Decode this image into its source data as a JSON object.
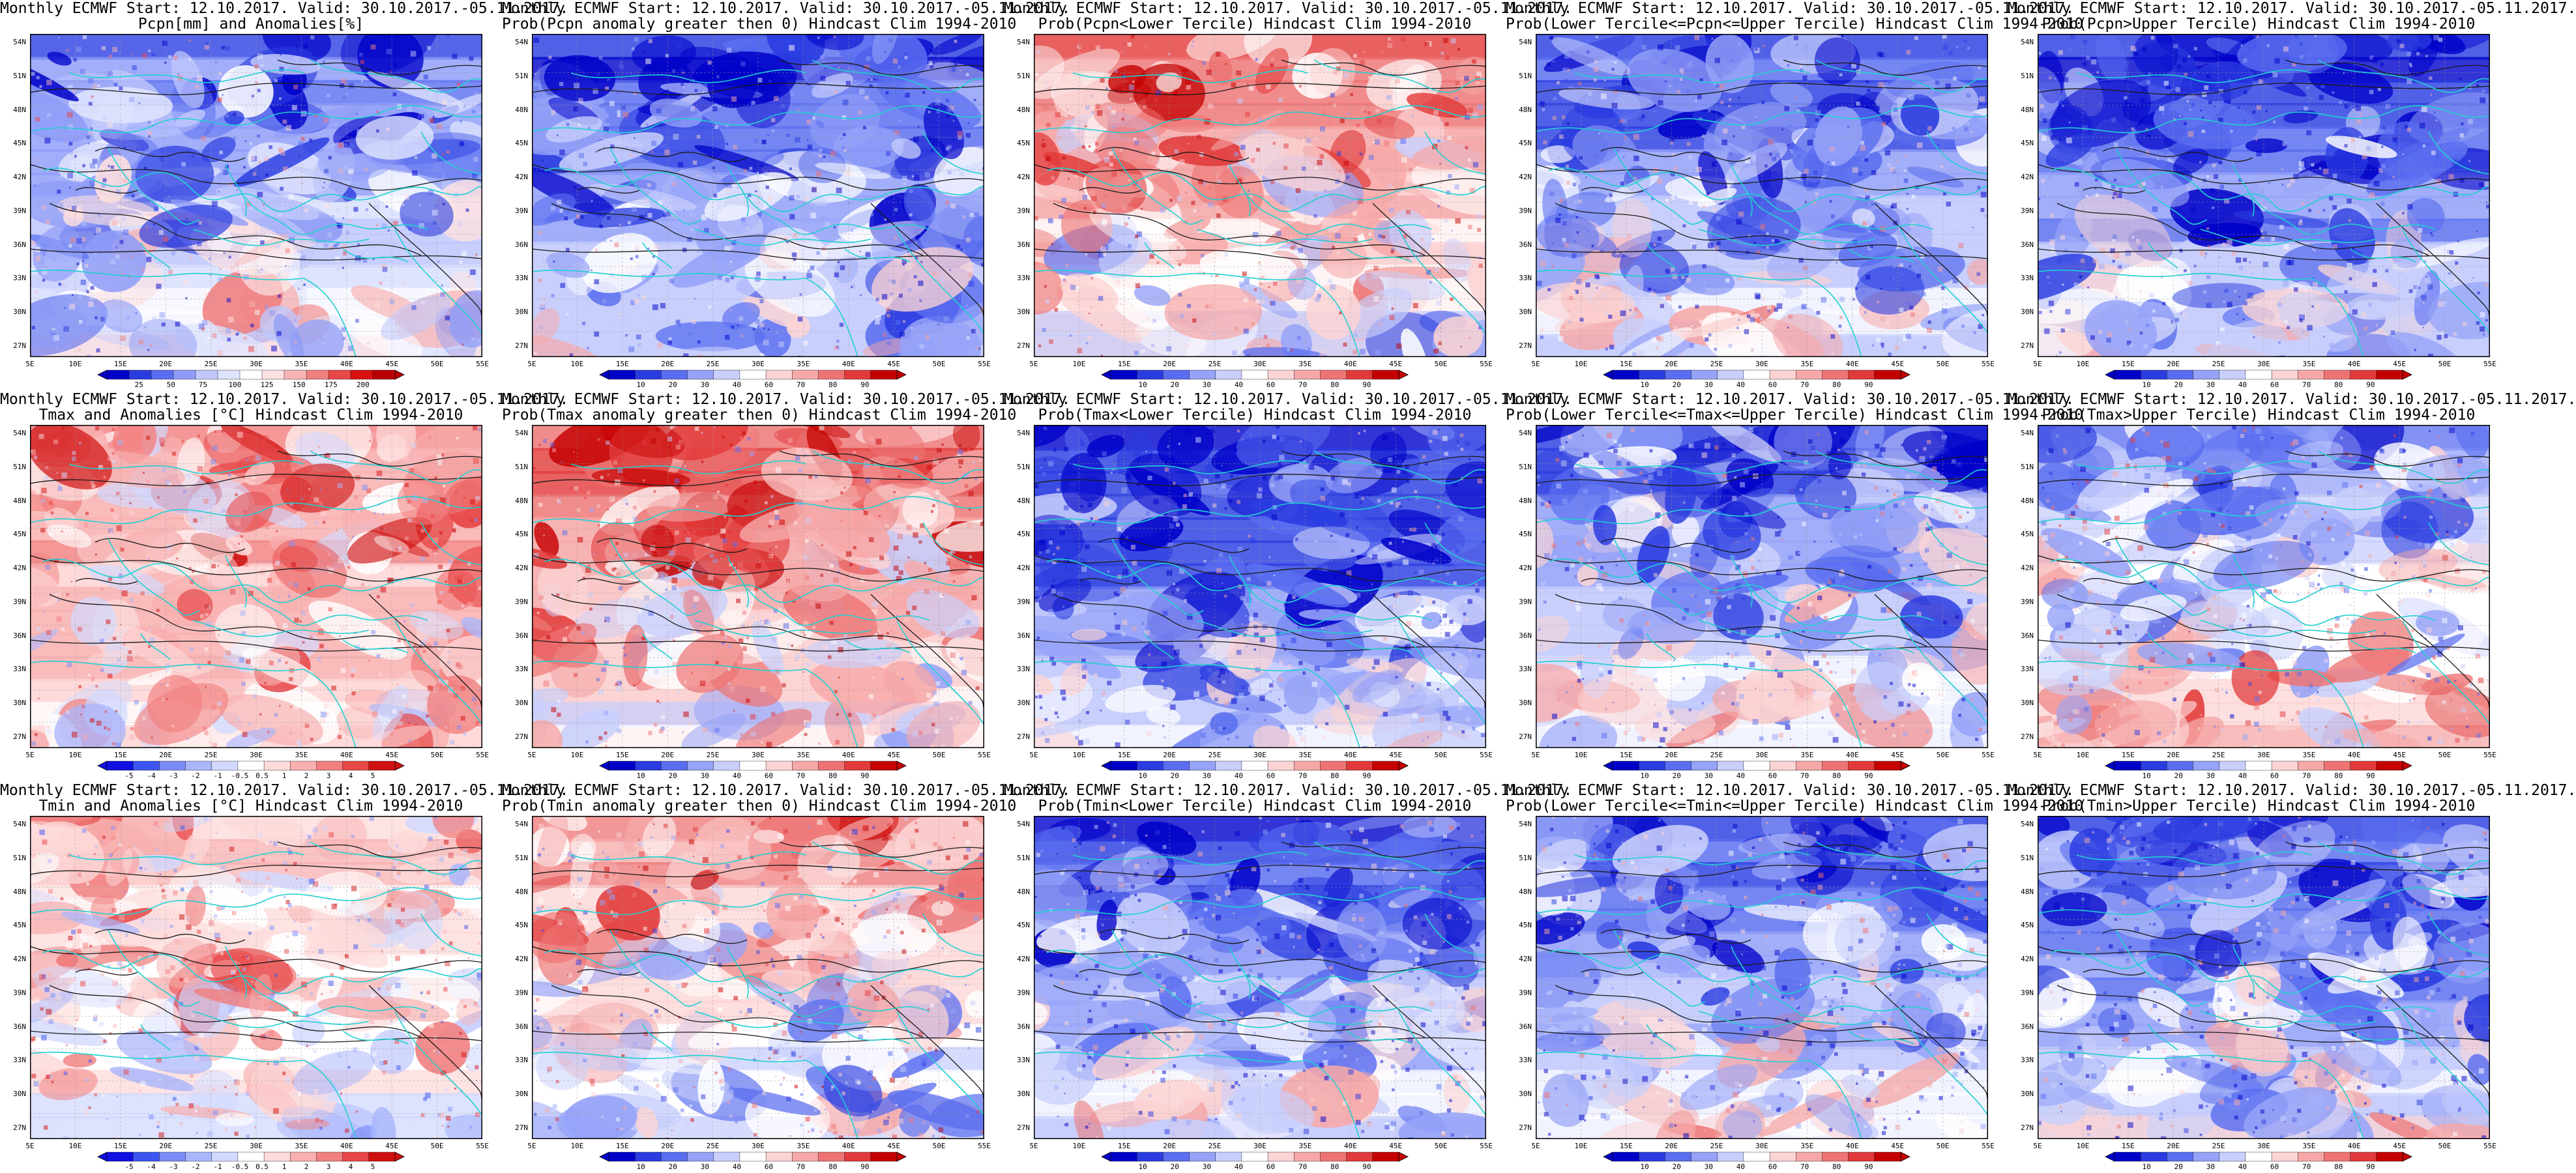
{
  "palettes": {
    "pcpn": [
      "#0000c8",
      "#2a3ce0",
      "#5a6ef0",
      "#8e9cf8",
      "#c0c8fc",
      "#dfe4fe",
      "#ffffff",
      "#fde0e0",
      "#f8b4b4",
      "#f08080",
      "#e84848",
      "#d81010",
      "#b80000"
    ],
    "temp": [
      "#1010e0",
      "#3d55f0",
      "#7a8cf8",
      "#aab6fc",
      "#d2d9fe",
      "#ffffff",
      "#fddada",
      "#f8b0b0",
      "#f28080",
      "#e84848",
      "#d01010"
    ],
    "prob": [
      "#0000c8",
      "#2a3ce0",
      "#5a6ef0",
      "#96a3f8",
      "#c8cffc",
      "#ffffff",
      "#fcd4d4",
      "#f6a8a8",
      "#ee7474",
      "#e23a3a",
      "#c40000"
    ],
    "contour": "#1a1a1a",
    "border": "#20d0d0",
    "grid": "#9a9a9a"
  },
  "map": {
    "lat_labels": [
      "54N",
      "51N",
      "48N",
      "45N",
      "42N",
      "39N",
      "36N",
      "33N",
      "30N",
      "27N"
    ],
    "lon_labels": [
      "5E",
      "10E",
      "15E",
      "20E",
      "25E",
      "30E",
      "35E",
      "40E",
      "45E",
      "50E",
      "55E"
    ]
  },
  "colorbars": {
    "pcpn": [
      "25",
      "50",
      "75",
      "100",
      "125",
      "150",
      "175",
      "200"
    ],
    "anom": [
      "-5",
      "-4",
      "-3",
      "-2",
      "-1",
      "-0.5",
      "0.5",
      "1",
      "2",
      "3",
      "4",
      "5"
    ],
    "prob": [
      "10",
      "20",
      "30",
      "40",
      "60",
      "70",
      "80",
      "90"
    ]
  },
  "panels": [
    {
      "id": "r0c0",
      "palette": "pcpn",
      "bias": -0.35,
      "cbar": "pcpn",
      "title1": "Monthly ECMWF Start: 12.10.2017. Valid: 30.10.2017.-05.11.2017.",
      "title2": "Pcpn[mm] and Anomalies[%]"
    },
    {
      "id": "r0c1",
      "palette": "prob",
      "bias": -0.45,
      "cbar": "prob",
      "title1": "Monthly ECMWF Start: 12.10.2017. Valid: 30.10.2017.-05.11.2017.",
      "title2": "Prob(Pcpn anomaly greater then 0) Hindcast Clim 1994-2010"
    },
    {
      "id": "r0c2",
      "palette": "prob",
      "bias": 0.2,
      "cbar": "prob",
      "title1": "Monthly ECMWF Start: 12.10.2017. Valid: 30.10.2017.-05.11.2017.",
      "title2": "Prob(Pcpn<Lower Tercile) Hindcast Clim 1994-2010"
    },
    {
      "id": "r0c3",
      "palette": "prob",
      "bias": -0.4,
      "cbar": "prob",
      "title1": "Monthly ECMWF Start: 12.10.2017. Valid: 30.10.2017.-05.11.2017.",
      "title2": "Prob(Lower Tercile<=Pcpn<=Upper Tercile) Hindcast Clim 1994-2010"
    },
    {
      "id": "r0c4",
      "palette": "prob",
      "bias": -0.5,
      "cbar": "prob",
      "title1": "Monthly ECMWF Start: 12.10.2017. Valid: 30.10.2017.-05.11.2017.",
      "title2": "Prob(Pcpn>Upper Tercile) Hindcast Clim 1994-2010"
    },
    {
      "id": "r1c0",
      "palette": "temp",
      "bias": 0.3,
      "cbar": "anom",
      "title1": "Monthly ECMWF Start: 12.10.2017. Valid: 30.10.2017.-05.11.2017.",
      "title2": "Tmax and Anomalies [°C] Hindcast Clim 1994-2010"
    },
    {
      "id": "r1c1",
      "palette": "prob",
      "bias": 0.35,
      "cbar": "prob",
      "title1": "Monthly ECMWF Start: 12.10.2017. Valid: 30.10.2017.-05.11.2017.",
      "title2": "Prob(Tmax anomaly greater then 0) Hindcast Clim 1994-2010"
    },
    {
      "id": "r1c2",
      "palette": "prob",
      "bias": -0.55,
      "cbar": "prob",
      "title1": "Monthly ECMWF Start: 12.10.2017. Valid: 30.10.2017.-05.11.2017.",
      "title2": "Prob(Tmax<Lower Tercile) Hindcast Clim 1994-2010"
    },
    {
      "id": "r1c3",
      "palette": "prob",
      "bias": -0.3,
      "cbar": "prob",
      "title1": "Monthly ECMWF Start: 12.10.2017. Valid: 30.10.2017.-05.11.2017.",
      "title2": "Prob(Lower Tercile<=Tmax<=Upper Tercile) Hindcast Clim 1994-2010"
    },
    {
      "id": "r1c4",
      "palette": "prob",
      "bias": -0.1,
      "cbar": "prob",
      "title1": "Monthly ECMWF Start: 12.10.2017. Valid: 30.10.2017.-05.11.2017.",
      "title2": "Prob(Tmax>Upper Tercile) Hindcast Clim 1994-2010"
    },
    {
      "id": "r2c0",
      "palette": "temp",
      "bias": 0.15,
      "cbar": "anom",
      "title1": "Monthly ECMWF Start: 12.10.2017. Valid: 30.10.2017.-05.11.2017.",
      "title2": "Tmin and Anomalies [°C] Hindcast Clim 1994-2010"
    },
    {
      "id": "r2c1",
      "palette": "prob",
      "bias": 0.1,
      "cbar": "prob",
      "title1": "Monthly ECMWF Start: 12.10.2017. Valid: 30.10.2017.-05.11.2017.",
      "title2": "Prob(Tmin anomaly greater then 0) Hindcast Clim 1994-2010"
    },
    {
      "id": "r2c2",
      "palette": "prob",
      "bias": -0.45,
      "cbar": "prob",
      "title1": "Monthly ECMWF Start: 12.10.2017. Valid: 30.10.2017.-05.11.2017.",
      "title2": "Prob(Tmin<Lower Tercile) Hindcast Clim 1994-2010"
    },
    {
      "id": "r2c3",
      "palette": "prob",
      "bias": -0.35,
      "cbar": "prob",
      "title1": "Monthly ECMWF Start: 12.10.2017. Valid: 30.10.2017.-05.11.2017.",
      "title2": "Prob(Lower Tercile<=Tmin<=Upper Tercile) Hindcast Clim 1994-2010"
    },
    {
      "id": "r2c4",
      "palette": "prob",
      "bias": -0.4,
      "cbar": "prob",
      "title1": "Monthly ECMWF Start: 12.10.2017. Valid: 30.10.2017.-05.11.2017.",
      "title2": "Prob(Tmin>Upper Tercile) Hindcast Clim 1994-2010"
    }
  ]
}
